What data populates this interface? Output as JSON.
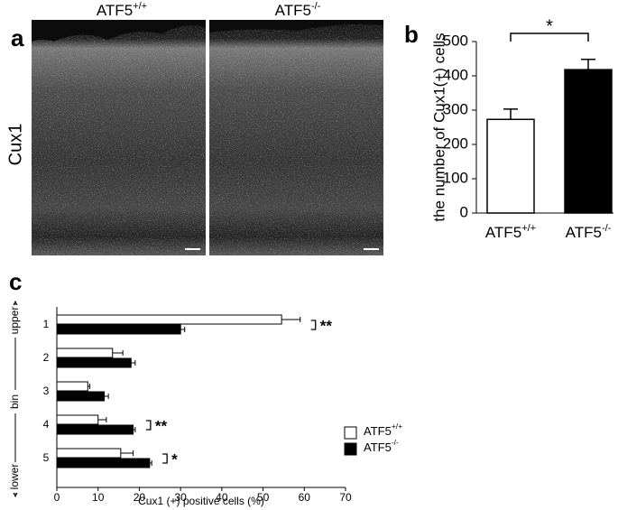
{
  "images": {
    "panel": "a",
    "columns": [
      "ATF5+/+",
      "ATF5-/-"
    ],
    "row_label": "Cux1"
  },
  "chart_data": [
    {
      "type": "bar",
      "panel": "b",
      "ylabel": "the number of Cux1(+) cells",
      "categories": [
        "ATF5+/+",
        "ATF5-/-"
      ],
      "values": [
        273,
        418
      ],
      "errors": [
        30,
        30
      ],
      "colors": [
        "#ffffff",
        "#000000"
      ],
      "ylim": [
        0,
        500
      ],
      "yticks": [
        0,
        100,
        200,
        300,
        400,
        500
      ],
      "annotation": "*"
    },
    {
      "type": "barh",
      "panel": "c",
      "xlabel": "Cux1 (+) positive cells (%)",
      "ylabel": "bin",
      "axis_ends": [
        "upper",
        "lower"
      ],
      "categories": [
        "1",
        "2",
        "3",
        "4",
        "5"
      ],
      "series": [
        {
          "name": "ATF5+/+",
          "color": "#ffffff",
          "values": [
            54.5,
            13.5,
            7.5,
            10,
            15.5
          ],
          "errors": [
            4.5,
            2.5,
            0.5,
            2,
            3
          ]
        },
        {
          "name": "ATF5-/-",
          "color": "#000000",
          "values": [
            30,
            18,
            11.5,
            18.5,
            22.5
          ],
          "errors": [
            1,
            1,
            1,
            0.5,
            0.5
          ]
        }
      ],
      "xlim": [
        0,
        70
      ],
      "xticks": [
        0,
        10,
        20,
        30,
        40,
        50,
        60,
        70
      ],
      "annotations": [
        "**",
        null,
        null,
        "**",
        "*"
      ],
      "legend": "lower right"
    }
  ]
}
